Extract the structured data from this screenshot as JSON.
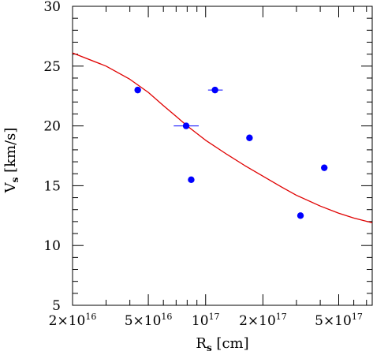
{
  "chart_data": {
    "type": "scatter",
    "title": "",
    "xlabel": {
      "main": "R",
      "sub": "s",
      "unit": " [cm]"
    },
    "ylabel": {
      "main": "V",
      "sub": "s",
      "unit": " [km/s]"
    },
    "x_scale": "log",
    "xlim": [
      2e+16,
      7.5e+17
    ],
    "ylim": [
      5,
      30
    ],
    "grid": false,
    "x_ticks": [
      {
        "value": 2e+16,
        "mantissa": "2×10",
        "exp": "16"
      },
      {
        "value": 5e+16,
        "mantissa": "5×10",
        "exp": "16"
      },
      {
        "value": 1e+17,
        "mantissa": "10",
        "exp": "17"
      },
      {
        "value": 2e+17,
        "mantissa": "2×10",
        "exp": "17"
      },
      {
        "value": 5e+17,
        "mantissa": "5×10",
        "exp": "17"
      }
    ],
    "y_ticks": [
      "5",
      "10",
      "15",
      "20",
      "25",
      "30"
    ],
    "points": [
      {
        "x": 4.4e+16,
        "y": 23.0
      },
      {
        "x": 7.9e+16,
        "y": 20.0,
        "xerr": [
          6.8e+16,
          9.2e+16
        ]
      },
      {
        "x": 1.12e+17,
        "y": 23.0,
        "xerr": [
          1.03e+17,
          1.23e+17
        ]
      },
      {
        "x": 8.4e+16,
        "y": 15.5
      },
      {
        "x": 1.7e+17,
        "y": 19.0
      },
      {
        "x": 3.15e+17,
        "y": 12.5
      },
      {
        "x": 4.2e+17,
        "y": 16.5
      }
    ],
    "fit_curve": [
      {
        "x": 2e+16,
        "y": 26.1
      },
      {
        "x": 3e+16,
        "y": 25.0
      },
      {
        "x": 4e+16,
        "y": 23.9
      },
      {
        "x": 5e+16,
        "y": 22.8
      },
      {
        "x": 6e+16,
        "y": 21.7
      },
      {
        "x": 7e+16,
        "y": 20.8
      },
      {
        "x": 8e+16,
        "y": 20.0
      },
      {
        "x": 1e+17,
        "y": 18.8
      },
      {
        "x": 1.3e+17,
        "y": 17.6
      },
      {
        "x": 1.6e+17,
        "y": 16.7
      },
      {
        "x": 2e+17,
        "y": 15.8
      },
      {
        "x": 2.5e+17,
        "y": 14.9
      },
      {
        "x": 3e+17,
        "y": 14.2
      },
      {
        "x": 4e+17,
        "y": 13.3
      },
      {
        "x": 5e+17,
        "y": 12.7
      },
      {
        "x": 6e+17,
        "y": 12.3
      },
      {
        "x": 7.5e+17,
        "y": 11.9
      }
    ],
    "colors": {
      "points": "#0000ff",
      "curve": "#e00000",
      "axes": "#000000"
    }
  }
}
